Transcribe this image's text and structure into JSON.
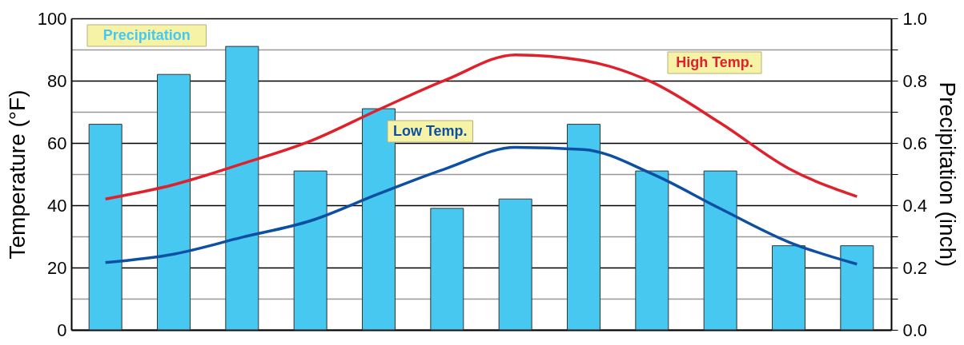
{
  "chart_data": {
    "type": "line",
    "categories": [
      null,
      null,
      null,
      null,
      null,
      null,
      null,
      null,
      null,
      null,
      null,
      null
    ],
    "ylabel": "Temperature (°F)",
    "y2label": "Precipitation (inch)",
    "ylim": [
      0,
      100
    ],
    "yticks": [
      0,
      20,
      40,
      60,
      80,
      100
    ],
    "y2lim": [
      0,
      1
    ],
    "y2ticks": [
      {
        "value": 0,
        "label": "0.0"
      },
      {
        "value": 0.1,
        "label": null
      },
      0.2,
      {
        "value": 0.3,
        "label": null
      },
      0.4,
      {
        "value": 0.5,
        "label": null
      },
      0.6,
      {
        "value": 0.7,
        "label": null
      },
      0.8,
      {
        "value": 0.9,
        "label": null
      },
      {
        "value": 1,
        "label": "1.0"
      }
    ],
    "grid": true,
    "legend": false,
    "marker": "none",
    "line_style": "solid",
    "series": [
      {
        "name": "Precipitation",
        "type": "bar",
        "axis": "y2",
        "color": "#47c8f0",
        "values": [
          0.66,
          0.82,
          0.91,
          0.51,
          0.71,
          0.39,
          0.42,
          0.66,
          0.51,
          0.51,
          0.27,
          0.27
        ]
      },
      {
        "name": "High Temp.",
        "color": "#e0202a",
        "values": [
          42,
          46.6,
          53.3,
          60.6,
          70.7,
          80.4,
          88.3,
          86.5,
          79.5,
          66.4,
          51.8,
          42.8
        ]
      },
      {
        "name": "Low Temp.",
        "color": "#0d4fa3",
        "values": [
          21.6,
          24.3,
          29.7,
          35,
          43.7,
          51.9,
          58.6,
          57.9,
          50.1,
          38.9,
          28.2,
          21.1
        ]
      }
    ]
  }
}
